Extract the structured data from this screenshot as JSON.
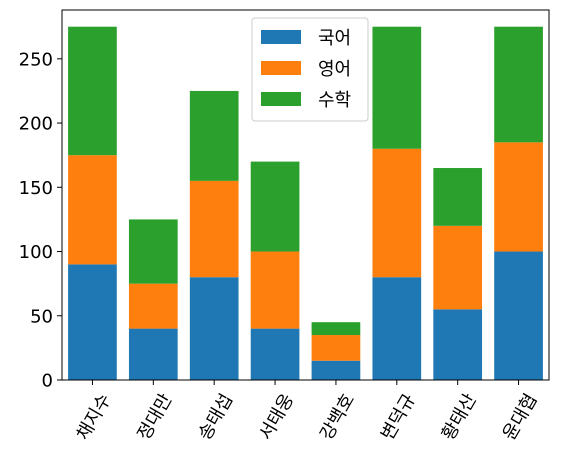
{
  "chart_data": {
    "type": "bar",
    "stacked": true,
    "title": "",
    "xlabel": "",
    "ylabel": "",
    "categories": [
      "채지수",
      "정대만",
      "송태섭",
      "서태웅",
      "강백호",
      "변덕규",
      "황태산",
      "윤대협"
    ],
    "series": [
      {
        "name": "국어",
        "color": "#1f77b4",
        "values": [
          90,
          40,
          80,
          40,
          15,
          80,
          55,
          100
        ]
      },
      {
        "name": "영어",
        "color": "#ff7f0e",
        "values": [
          85,
          35,
          75,
          60,
          20,
          100,
          65,
          85
        ]
      },
      {
        "name": "수학",
        "color": "#2ca02c",
        "values": [
          100,
          50,
          70,
          70,
          10,
          95,
          45,
          90
        ]
      }
    ],
    "ylim": [
      0,
      288
    ],
    "yticks": [
      0,
      50,
      100,
      150,
      200,
      250
    ],
    "grid": false,
    "legend_position": "top-center"
  }
}
